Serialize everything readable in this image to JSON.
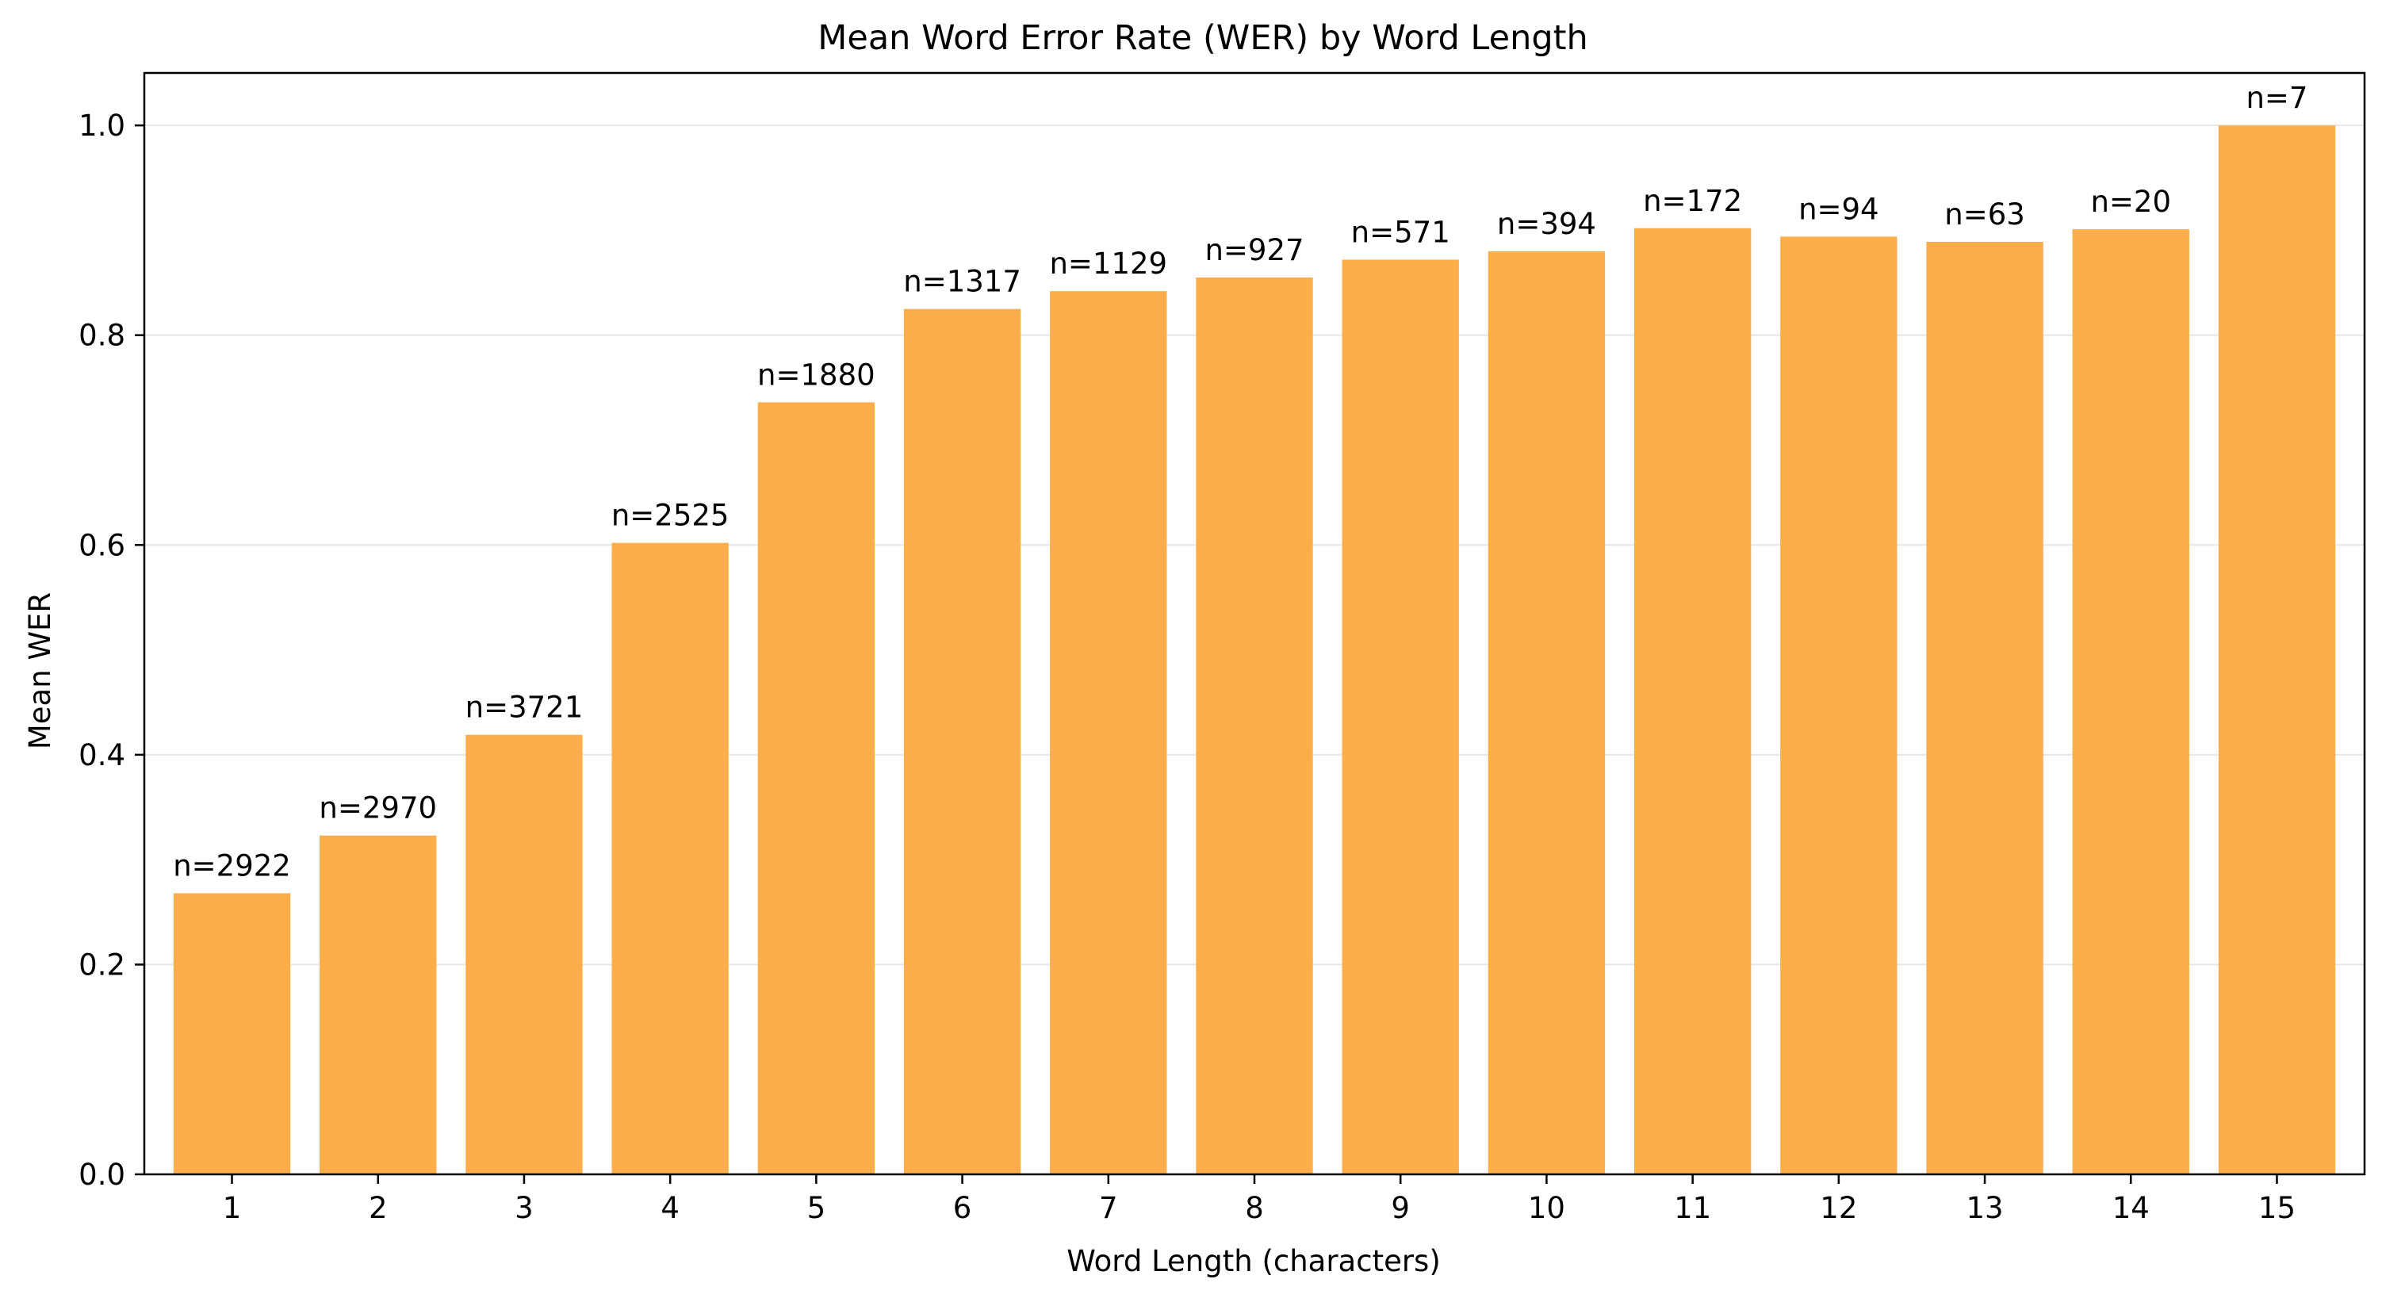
{
  "chart_data": {
    "type": "bar",
    "title": "Mean Word Error Rate (WER) by Word Length",
    "xlabel": "Word Length (characters)",
    "ylabel": "Mean WER",
    "categories": [
      "1",
      "2",
      "3",
      "4",
      "5",
      "6",
      "7",
      "8",
      "9",
      "10",
      "11",
      "12",
      "13",
      "14",
      "15"
    ],
    "values": [
      0.268,
      0.323,
      0.419,
      0.602,
      0.736,
      0.825,
      0.842,
      0.855,
      0.872,
      0.88,
      0.902,
      0.894,
      0.889,
      0.901,
      1.0
    ],
    "bar_labels": [
      "n=2922",
      "n=2970",
      "n=3721",
      "n=2525",
      "n=1880",
      "n=1317",
      "n=1129",
      "n=927",
      "n=571",
      "n=394",
      "n=172",
      "n=94",
      "n=63",
      "n=20",
      "n=7"
    ],
    "ylim": [
      0,
      1.05
    ],
    "yticks": [
      "0.0",
      "0.2",
      "0.4",
      "0.6",
      "0.8",
      "1.0"
    ],
    "ytick_values": [
      0,
      0.2,
      0.4,
      0.6,
      0.8,
      1.0
    ],
    "grid": "y-axis only",
    "bar_color": "#fdae4b",
    "gridline_color": "#e6e6e6"
  }
}
